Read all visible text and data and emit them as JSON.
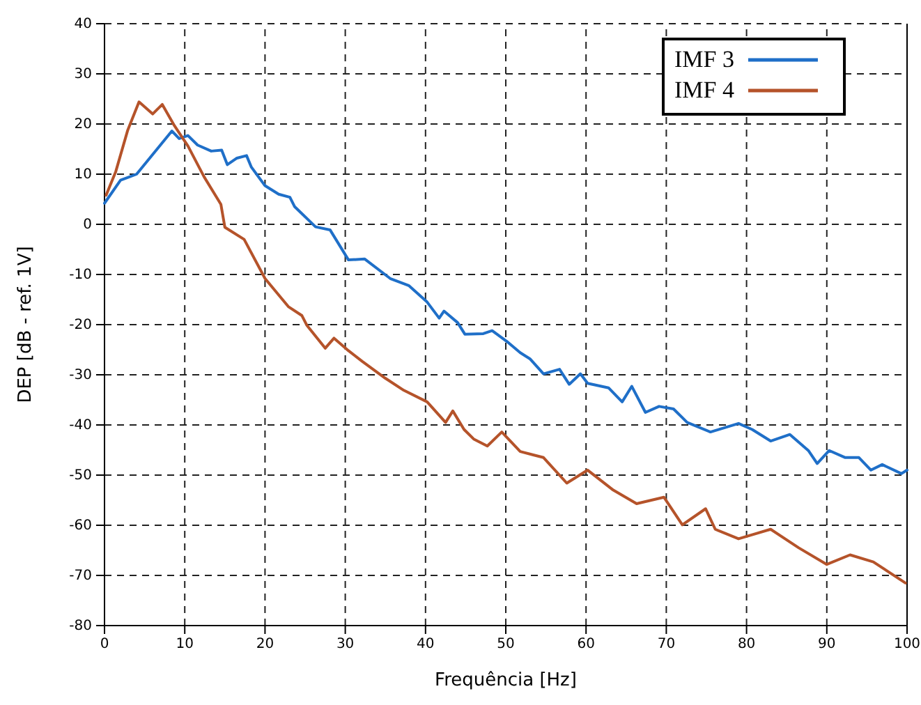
{
  "chart_data": {
    "type": "line",
    "xlabel": "Frequência [Hz]",
    "ylabel": "DEP [dB - ref. 1V]",
    "xlim": [
      0,
      100
    ],
    "ylim": [
      -80,
      40
    ],
    "xticks": [
      0,
      10,
      20,
      30,
      40,
      50,
      60,
      70,
      80,
      90,
      100
    ],
    "yticks": [
      -80,
      -70,
      -60,
      -50,
      -40,
      -30,
      -20,
      -10,
      0,
      10,
      20,
      30,
      40
    ],
    "grid": true,
    "legend": "top right",
    "line_style": "solid",
    "marker": "none",
    "series": [
      {
        "name": "IMF 3",
        "color": "#1f6fc8",
        "x": [
          0,
          2,
          4,
          8.4,
          9.3,
          10.4,
          11.6,
          13.3,
          14.6,
          15.3,
          16.5,
          17.7,
          18.3,
          20,
          21.7,
          23.1,
          23.7,
          26.3,
          28.1,
          30.4,
          32.4,
          35.6,
          37.9,
          40.2,
          41.7,
          42.3,
          44,
          44.9,
          47.2,
          48.3,
          50.1,
          51.8,
          53,
          54.7,
          56.7,
          57.9,
          59.3,
          60.2,
          62.8,
          64.5,
          65.7,
          67.4,
          69.1,
          70.9,
          72.6,
          75.5,
          79,
          80.7,
          83,
          85.4,
          87.7,
          88.8,
          90.3,
          92.3,
          94,
          95.5,
          96.9,
          99.3,
          100
        ],
        "values": [
          4.2,
          8.8,
          10,
          18.6,
          17.1,
          17.7,
          15.8,
          14.6,
          14.8,
          11.9,
          13.2,
          13.7,
          11.4,
          7.7,
          6,
          5.4,
          3.5,
          -0.5,
          -1.1,
          -7.1,
          -6.9,
          -10.8,
          -12.2,
          -15.5,
          -18.7,
          -17.3,
          -19.6,
          -21.9,
          -21.8,
          -21.2,
          -23.3,
          -25.6,
          -26.8,
          -29.8,
          -28.9,
          -31.9,
          -29.8,
          -31.7,
          -32.6,
          -35.4,
          -32.3,
          -37.5,
          -36.3,
          -36.8,
          -39.5,
          -41.4,
          -39.7,
          -40.9,
          -43.2,
          -41.9,
          -45.1,
          -47.7,
          -45.1,
          -46.5,
          -46.5,
          -49,
          -47.9,
          -49.7,
          -49
        ]
      },
      {
        "name": "IMF 4",
        "color": "#b5532a",
        "x": [
          0.2,
          1.4,
          2.9,
          4.3,
          6,
          7.2,
          8.7,
          10.4,
          12.4,
          14.5,
          15,
          17.4,
          20,
          22.9,
          24.6,
          25.2,
          27.5,
          28.6,
          30.4,
          32.1,
          35,
          37.3,
          40.2,
          42.5,
          43.4,
          44.8,
          46,
          47.7,
          49.5,
          51.8,
          54.7,
          57.6,
          60.2,
          63.4,
          66.3,
          69.7,
          72,
          74.9,
          76.1,
          79,
          83,
          86.5,
          90,
          92.9,
          95.8,
          99.8
        ],
        "values": [
          5.8,
          10.5,
          18.8,
          24.4,
          22,
          23.9,
          19.7,
          15.6,
          9.5,
          4,
          -0.6,
          -3,
          -10.8,
          -16.4,
          -18.2,
          -20.1,
          -24.7,
          -22.7,
          -25.2,
          -27.3,
          -30.7,
          -33.1,
          -35.4,
          -39.5,
          -37.2,
          -40.9,
          -42.8,
          -44.2,
          -41.4,
          -45.3,
          -46.5,
          -51.6,
          -49,
          -53,
          -55.7,
          -54.4,
          -59.9,
          -56.7,
          -60.8,
          -62.7,
          -60.8,
          -64.5,
          -67.8,
          -65.9,
          -67.3,
          -71.5
        ]
      }
    ]
  }
}
